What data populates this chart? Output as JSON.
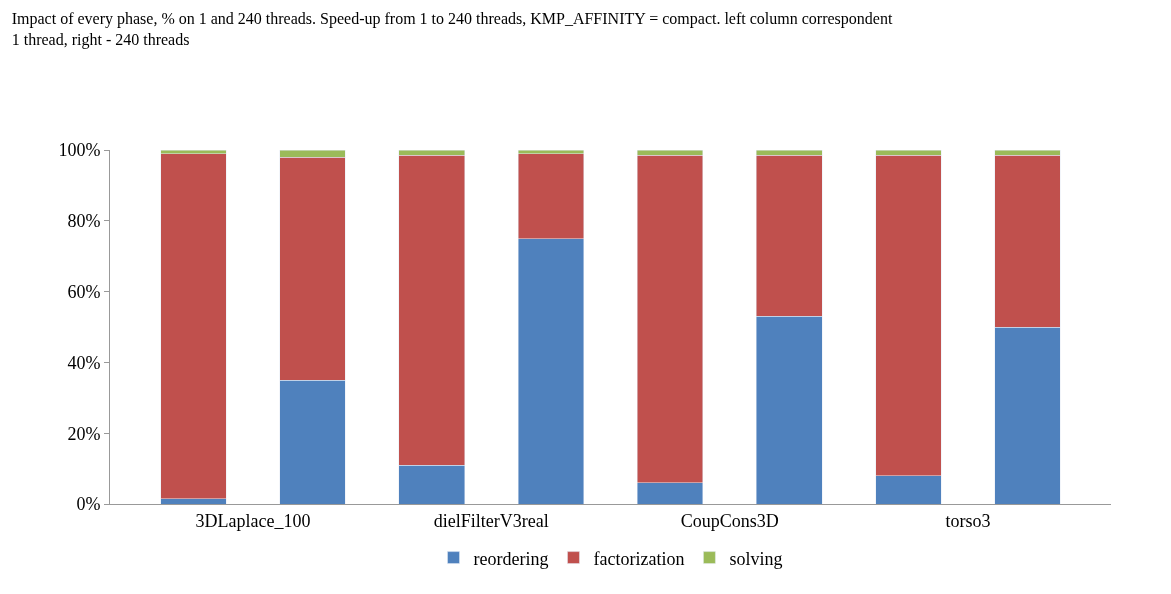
{
  "chart_data": {
    "type": "bar",
    "stacked": true,
    "title": "Impact of every phase, % on 1 and 240 threads. Speed-up from 1 to 240 threads, KMP_AFFINITY = compact. left column correspondent\n1 thread, right - 240 threads",
    "categories": [
      "3DLaplace_100",
      null,
      "dielFilterV3real",
      null,
      "CoupCons3D",
      null,
      "torso3",
      null
    ],
    "series": [
      {
        "name": "reordering",
        "color": "#4f81bd",
        "values": [
          1.5,
          35,
          11,
          75,
          6,
          53,
          8,
          50
        ]
      },
      {
        "name": "factorization",
        "color": "#c0504d",
        "values": [
          97.5,
          63,
          87.5,
          24,
          92.5,
          45.5,
          90.5,
          48.5
        ]
      },
      {
        "name": "solving",
        "color": "#9bbb59",
        "values": [
          1,
          2,
          1.5,
          1,
          1.5,
          1.5,
          1.5,
          1.5
        ]
      }
    ],
    "ylim": [
      0,
      100
    ],
    "yticks": [
      {
        "value": 0,
        "label": "0%"
      },
      {
        "value": 20,
        "label": "20%"
      },
      {
        "value": 40,
        "label": "40%"
      },
      {
        "value": 60,
        "label": "60%"
      },
      {
        "value": 80,
        "label": "80%"
      },
      {
        "value": 100,
        "label": "100%"
      }
    ],
    "legend": "bottom"
  }
}
